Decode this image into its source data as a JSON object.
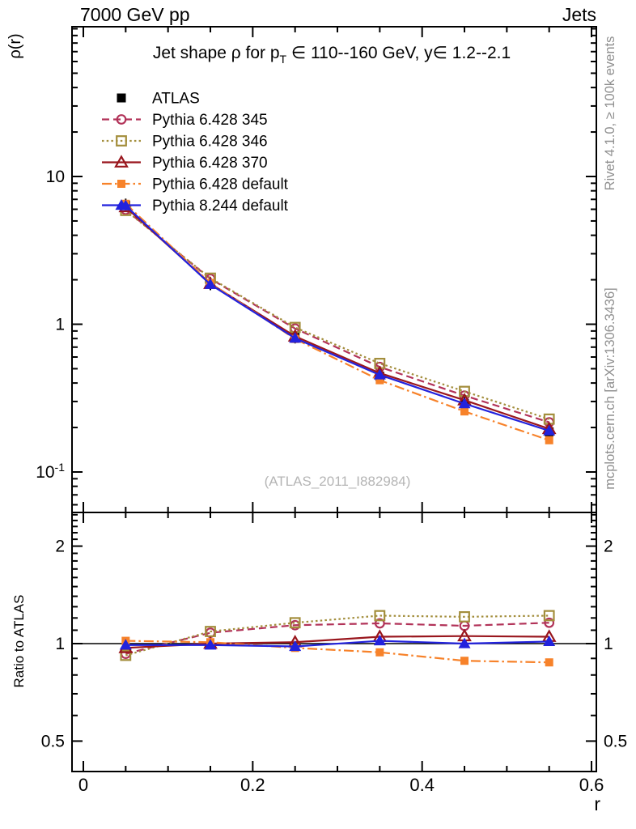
{
  "header": {
    "left_label": "7000 GeV pp",
    "right_label": "Jets"
  },
  "side_notes": {
    "top_vertical": "Rivet 4.1.0, ≥ 100k events",
    "bottom_vertical": "mcplots.cern.ch [arXiv:1306.3436]"
  },
  "watermark": "(ATLAS_2011_I882984)",
  "title": {
    "pre": "Jet shape ρ for p",
    "sub": "T",
    "post": " ∈ 110--160 GeV, y∈ 1.2--2.1"
  },
  "chart_data": {
    "type": "line",
    "title": "Jet shape ρ for p_T ∈ 110--160 GeV, y ∈ 1.2--2.1",
    "x": [
      0.05,
      0.15,
      0.25,
      0.35,
      0.45,
      0.55
    ],
    "axes": {
      "x": {
        "label": "r",
        "range": [
          -0.013,
          0.606
        ],
        "major_ticks": [
          0,
          0.2,
          0.4,
          0.6
        ],
        "tick_labels": [
          "0",
          "0.2",
          "0.4",
          "0.6"
        ],
        "minor_tick_step": 0.05
      },
      "y_main": {
        "label": "ρ(r)",
        "scale": "log",
        "range": [
          0.053,
          103
        ],
        "major_ticks": [
          10,
          1,
          0.1
        ],
        "tick_labels": [
          {
            "base": "10",
            "sup": ""
          },
          {
            "base": "1",
            "sup": ""
          },
          {
            "base": "10",
            "sup": "-1"
          }
        ]
      },
      "y_ratio": {
        "label": "Ratio to ATLAS",
        "scale": "log",
        "range": [
          0.4,
          2.54
        ],
        "major_ticks": [
          2,
          1,
          0.5
        ],
        "tick_labels": [
          "2",
          "1",
          "0.5"
        ],
        "reference_line": 1
      }
    },
    "legend_position": "top-left",
    "series": [
      {
        "name": "ATLAS",
        "color": "#000000",
        "line": "none",
        "marker": "square-filled",
        "values": [
          6.4,
          1.88,
          0.82,
          0.445,
          0.29,
          0.187
        ],
        "ratio": null
      },
      {
        "name": "Pythia 6.428 345",
        "color": "#b23359",
        "line": "dashed",
        "marker": "circle-open",
        "values": [
          5.95,
          2.03,
          0.935,
          0.514,
          0.329,
          0.217
        ],
        "ratio": [
          0.93,
          1.08,
          1.14,
          1.155,
          1.135,
          1.16
        ]
      },
      {
        "name": "Pythia 6.428 346",
        "color": "#a38e3c",
        "line": "dotted",
        "marker": "square-open",
        "values": [
          5.89,
          2.05,
          0.951,
          0.543,
          0.351,
          0.228
        ],
        "ratio": [
          0.92,
          1.09,
          1.16,
          1.22,
          1.21,
          1.22
        ]
      },
      {
        "name": "Pythia 6.428 370",
        "color": "#99161d",
        "line": "solid",
        "marker": "triangle-open",
        "values": [
          6.21,
          1.88,
          0.828,
          0.467,
          0.306,
          0.196
        ],
        "ratio": [
          0.97,
          1.0,
          1.01,
          1.05,
          1.055,
          1.05
        ]
      },
      {
        "name": "Pythia 6.428 default",
        "color": "#f7822a",
        "line": "dashdot",
        "marker": "square-filled-small",
        "values": [
          6.53,
          1.9,
          0.795,
          0.418,
          0.257,
          0.164
        ],
        "ratio": [
          1.02,
          1.01,
          0.97,
          0.94,
          0.885,
          0.875
        ]
      },
      {
        "name": "Pythia 8.244 default",
        "color": "#2222dd",
        "line": "solid",
        "marker": "triangle-filled",
        "values": [
          6.34,
          1.86,
          0.804,
          0.454,
          0.29,
          0.19
        ],
        "ratio": [
          0.99,
          0.99,
          0.98,
          1.02,
          1.0,
          1.015
        ]
      }
    ]
  }
}
